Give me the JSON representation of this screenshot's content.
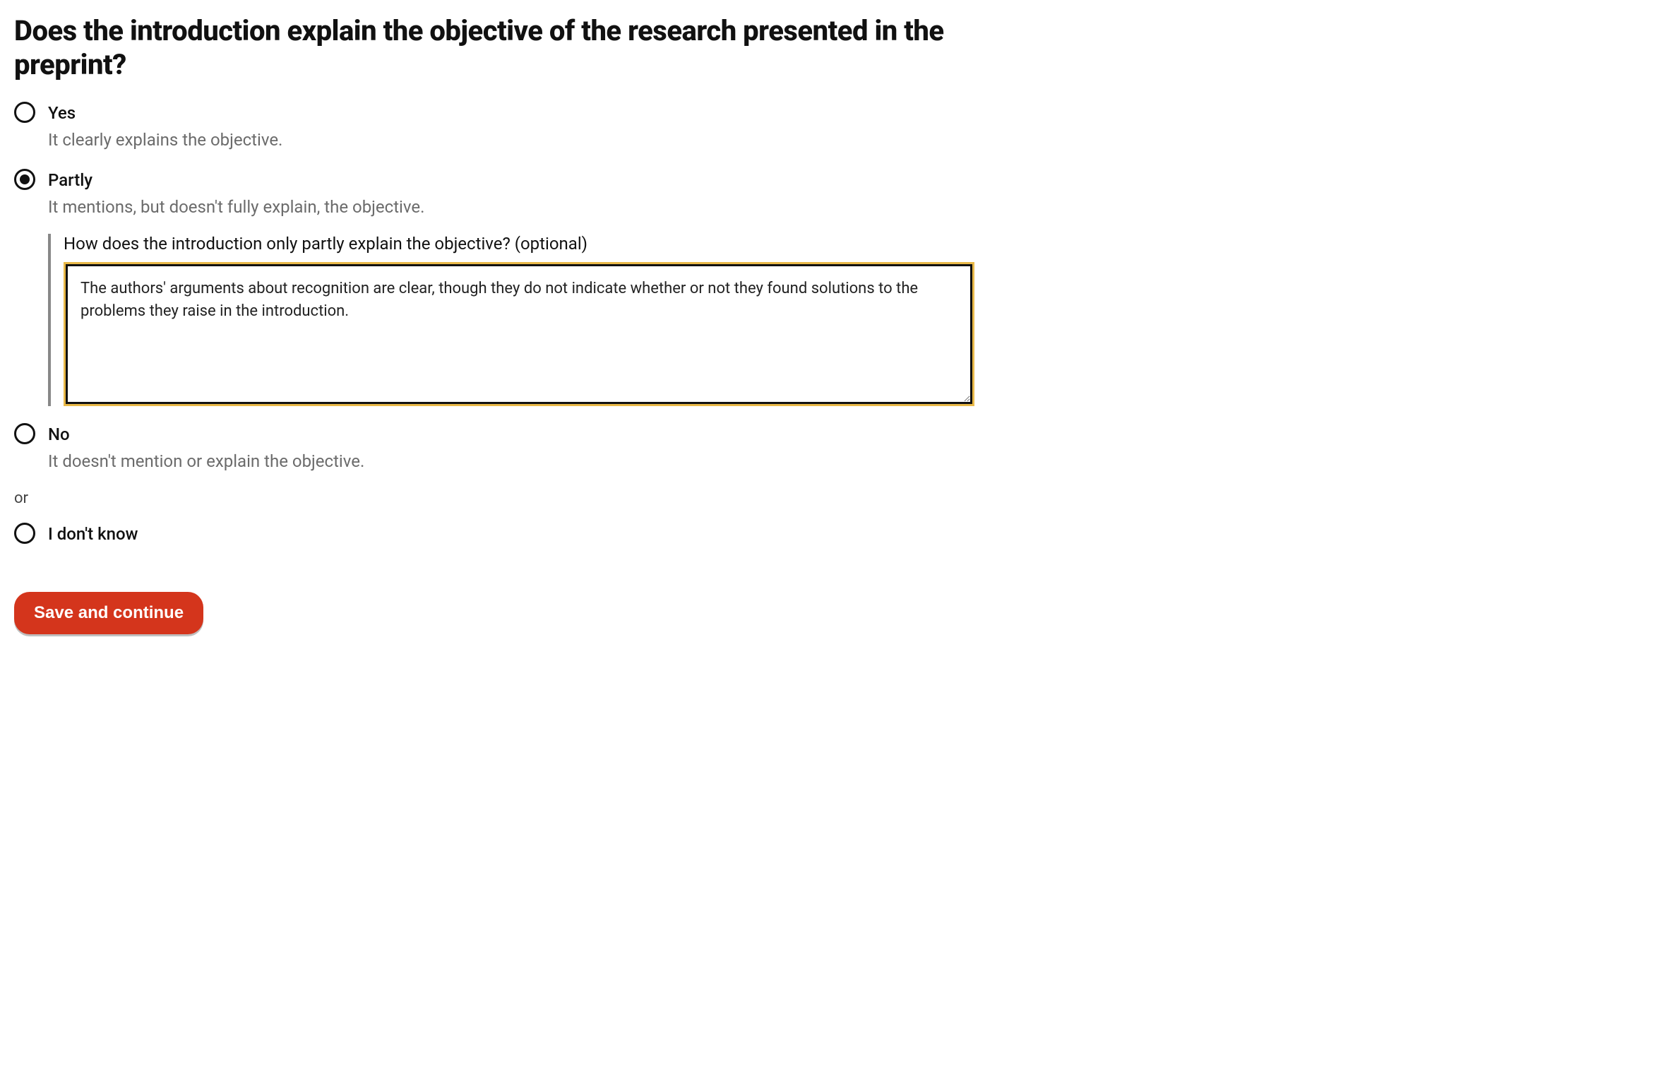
{
  "question": {
    "heading": "Does the introduction explain the objective of the research presented in the preprint?"
  },
  "options": {
    "yes": {
      "label": "Yes",
      "desc": "It clearly explains the objective.",
      "selected": false
    },
    "partly": {
      "label": "Partly",
      "desc": "It mentions, but doesn't fully explain, the objective.",
      "selected": true,
      "followup_label": "How does the introduction only partly explain the objective? (optional)",
      "followup_value": "The authors' arguments about recognition are clear, though they do not indicate whether or not they found solutions to the problems they raise in the introduction."
    },
    "no": {
      "label": "No",
      "desc": "It doesn't mention or explain the objective.",
      "selected": false
    },
    "dont_know": {
      "label": "I don't know",
      "selected": false
    }
  },
  "divider": {
    "or_text": "or"
  },
  "actions": {
    "submit_label": "Save and continue"
  },
  "styles": {
    "accent_color": "#d4351c",
    "focus_ring_color": "#e9b949",
    "text_color": "#111111",
    "muted_text_color": "#6b6b6b",
    "background_color": "#ffffff"
  }
}
